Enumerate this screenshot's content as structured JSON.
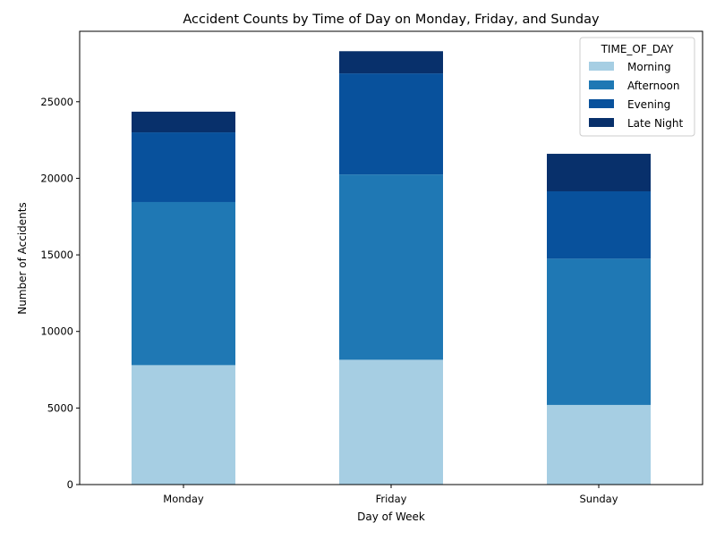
{
  "chart_data": {
    "type": "bar",
    "stacked": true,
    "title": "Accident Counts by Time of Day on Monday, Friday, and Sunday",
    "xlabel": "Day of Week",
    "ylabel": "Number of Accidents",
    "categories": [
      "Monday",
      "Friday",
      "Sunday"
    ],
    "ylim": [
      0,
      29600
    ],
    "yticks": [
      0,
      5000,
      10000,
      15000,
      20000,
      25000
    ],
    "grid": false,
    "legend": {
      "title": "TIME_OF_DAY",
      "placement": "top-right"
    },
    "series": [
      {
        "name": "Morning",
        "color": "#a6cee3",
        "values": [
          7800,
          8150,
          5200
        ]
      },
      {
        "name": "Afternoon",
        "color": "#1f78b4",
        "values": [
          10650,
          12100,
          9550
        ]
      },
      {
        "name": "Evening",
        "color": "#08519c",
        "values": [
          4550,
          6600,
          4400
        ]
      },
      {
        "name": "Late Night",
        "color": "#08306b",
        "values": [
          1350,
          1450,
          2450
        ]
      }
    ]
  }
}
